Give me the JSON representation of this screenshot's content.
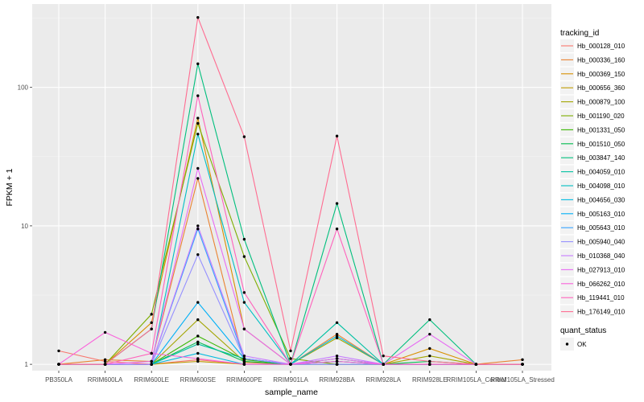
{
  "chart_data": {
    "type": "line",
    "title": "",
    "xlabel": "sample_name",
    "ylabel": "FPKM + 1",
    "y_scale": "log10",
    "ylim": [
      0.9,
      400
    ],
    "y_ticks": [
      1,
      10,
      100
    ],
    "y_tick_labels": [
      "1",
      "10",
      "100"
    ],
    "grid": true,
    "legend_position": "right",
    "categories": [
      "PB350LA",
      "RRIM600LA",
      "RRIM600LE",
      "RRIM600SE",
      "RRIM600PE",
      "RRIM901LA",
      "RRIM928BA",
      "RRIM928LA",
      "RRIM928LE",
      "RRIM105LA_Control",
      "RRIM105LA_Stressed"
    ],
    "legend": {
      "title": "tracking_id",
      "entries": [
        "Hb_000128_010",
        "Hb_000336_160",
        "Hb_000369_150",
        "Hb_000656_360",
        "Hb_000879_100",
        "Hb_001190_020",
        "Hb_001331_050",
        "Hb_001510_050",
        "Hb_003847_140",
        "Hb_004059_010",
        "Hb_004098_010",
        "Hb_004656_030",
        "Hb_005163_010",
        "Hb_005643_010",
        "Hb_005940_040",
        "Hb_010368_040",
        "Hb_027913_010",
        "Hb_066262_010",
        "Hb_119441_010",
        "Hb_176149_010"
      ]
    },
    "point_legend": {
      "title": "quant_status",
      "entries": [
        "OK"
      ]
    },
    "series": [
      {
        "name": "Hb_000128_010",
        "color": "#F8766D",
        "values": [
          1.25,
          1.05,
          1.0,
          1.08,
          1.0,
          1.0,
          1.0,
          1.0,
          1.0,
          1.0,
          1.0
        ]
      },
      {
        "name": "Hb_000336_160",
        "color": "#EA8331",
        "values": [
          1.0,
          1.08,
          1.05,
          22.0,
          1.03,
          1.0,
          1.65,
          1.0,
          1.0,
          1.0,
          1.08
        ]
      },
      {
        "name": "Hb_000369_150",
        "color": "#D89000",
        "values": [
          1.0,
          1.0,
          2.0,
          60.0,
          1.8,
          1.0,
          1.0,
          1.0,
          1.3,
          1.0,
          1.0
        ]
      },
      {
        "name": "Hb_000656_360",
        "color": "#C09B00",
        "values": [
          1.0,
          1.0,
          1.0,
          1.05,
          1.0,
          1.0,
          1.0,
          1.0,
          1.0,
          1.0,
          1.0
        ]
      },
      {
        "name": "Hb_000879_100",
        "color": "#A3A500",
        "values": [
          1.0,
          1.0,
          1.0,
          2.1,
          1.05,
          1.0,
          1.55,
          1.0,
          1.15,
          1.0,
          1.0
        ]
      },
      {
        "name": "Hb_001190_020",
        "color": "#7CAE00",
        "values": [
          1.0,
          1.0,
          2.3,
          55.0,
          6.0,
          1.1,
          1.0,
          1.0,
          1.0,
          1.0,
          1.0
        ]
      },
      {
        "name": "Hb_001331_050",
        "color": "#39B600",
        "values": [
          1.0,
          1.0,
          1.0,
          1.6,
          1.08,
          1.0,
          1.05,
          1.0,
          1.0,
          1.0,
          1.0
        ]
      },
      {
        "name": "Hb_001510_050",
        "color": "#00BB4E",
        "values": [
          1.0,
          1.0,
          1.0,
          1.45,
          1.05,
          1.0,
          1.1,
          1.0,
          1.05,
          1.0,
          1.0
        ]
      },
      {
        "name": "Hb_003847_140",
        "color": "#00BF7D",
        "values": [
          1.0,
          1.0,
          1.8,
          148.0,
          8.0,
          1.0,
          14.5,
          1.0,
          2.1,
          1.0,
          1.0
        ]
      },
      {
        "name": "Hb_004059_010",
        "color": "#00C1A3",
        "values": [
          1.0,
          1.0,
          1.0,
          1.4,
          1.1,
          1.0,
          2.0,
          1.0,
          1.0,
          1.0,
          1.0
        ]
      },
      {
        "name": "Hb_004098_010",
        "color": "#00BFC4",
        "values": [
          1.0,
          1.0,
          1.0,
          46.0,
          2.8,
          1.0,
          1.05,
          1.0,
          1.0,
          1.0,
          1.0
        ]
      },
      {
        "name": "Hb_004656_030",
        "color": "#00BAE0",
        "values": [
          1.0,
          1.0,
          1.0,
          1.2,
          1.0,
          1.0,
          1.6,
          1.0,
          1.0,
          1.0,
          1.0
        ]
      },
      {
        "name": "Hb_005163_010",
        "color": "#00B0F6",
        "values": [
          1.0,
          1.0,
          1.0,
          2.8,
          1.1,
          1.0,
          1.0,
          1.0,
          1.0,
          1.0,
          1.0
        ]
      },
      {
        "name": "Hb_005643_010",
        "color": "#35A2FF",
        "values": [
          1.0,
          1.0,
          1.0,
          9.5,
          1.1,
          1.0,
          1.0,
          1.0,
          1.0,
          1.0,
          1.0
        ]
      },
      {
        "name": "Hb_005940_040",
        "color": "#9590FF",
        "values": [
          1.0,
          1.0,
          1.0,
          6.2,
          1.1,
          1.0,
          1.0,
          1.0,
          1.0,
          1.0,
          1.0
        ]
      },
      {
        "name": "Hb_010368_040",
        "color": "#C77CFF",
        "values": [
          1.0,
          1.0,
          1.0,
          10.0,
          1.15,
          1.0,
          1.15,
          1.0,
          1.0,
          1.0,
          1.0
        ]
      },
      {
        "name": "Hb_027913_010",
        "color": "#E76BF3",
        "values": [
          1.0,
          1.0,
          1.05,
          26.0,
          1.8,
          1.0,
          1.1,
          1.0,
          1.65,
          1.0,
          1.0
        ]
      },
      {
        "name": "Hb_066262_010",
        "color": "#FA62DB",
        "values": [
          1.0,
          1.7,
          1.2,
          1.1,
          1.0,
          1.0,
          1.05,
          1.0,
          1.0,
          1.0,
          1.0
        ]
      },
      {
        "name": "Hb_119441_010",
        "color": "#FF62BC",
        "values": [
          1.0,
          1.0,
          1.2,
          87.0,
          3.3,
          1.0,
          9.5,
          1.0,
          1.0,
          1.0,
          1.0
        ]
      },
      {
        "name": "Hb_176149_010",
        "color": "#FF6C91",
        "values": [
          1.0,
          1.0,
          1.8,
          320.0,
          44.0,
          1.25,
          44.5,
          1.15,
          1.05,
          1.0,
          1.0
        ]
      }
    ]
  }
}
